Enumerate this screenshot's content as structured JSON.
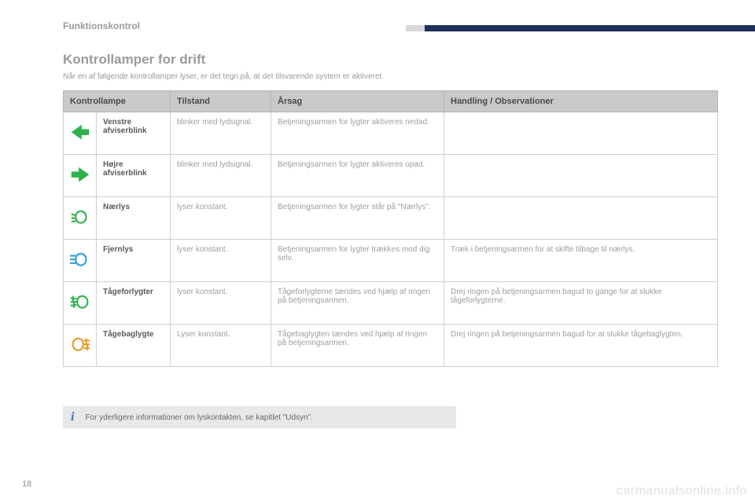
{
  "breadcrumb": "Funktionskontrol",
  "heading": "Kontrollamper for drift",
  "subheading": "Når en af følgende kontrollamper lyser, er det tegn på, at det tilsvarende system er aktiveret.",
  "columns": {
    "lamp": "Kontrollampe",
    "state": "Tilstand",
    "cause": "Årsag",
    "action": "Handling / Observationer"
  },
  "rows": [
    {
      "icon": "left-arrow",
      "icon_color": "#2fb24c",
      "name": "Venstre afviserblink",
      "state": "blinker med lydsignal.",
      "cause": "Betjeningsarmen for lygter aktiveres nedad.",
      "action": ""
    },
    {
      "icon": "right-arrow",
      "icon_color": "#2fb24c",
      "name": "Højre afviserblink",
      "state": "blinker med lydsignal.",
      "cause": "Betjeningsarmen for lygter aktiveres opad.",
      "action": ""
    },
    {
      "icon": "low-beam",
      "icon_color": "#2fb24c",
      "name": "Nærlys",
      "state": "lyser konstant.",
      "cause": "Betjeningsarmen for lygter står på \"Nærlys\".",
      "action": ""
    },
    {
      "icon": "high-beam",
      "icon_color": "#2aa0d8",
      "name": "Fjernlys",
      "state": "lyser konstant.",
      "cause": "Betjeningsarmen for lygter trækkes mod dig selv.",
      "action": "Træk i betjeningsarmen for at skifte tilbage til nærlys."
    },
    {
      "icon": "front-fog",
      "icon_color": "#2fb24c",
      "name": "Tågeforlygter",
      "state": "lyser konstant.",
      "cause": "Tågeforlygterne tændes ved hjælp af ringen på betjeningsarmen.",
      "action": "Drej ringen på betjeningsarmen bagud to gange for at slukke tågeforlygterne."
    },
    {
      "icon": "rear-fog",
      "icon_color": "#e79a2a",
      "name": "Tågebaglygte",
      "state": "Lyser konstant.",
      "cause": "Tågebaglygten tændes ved hjælp af ringen på betjeningsarmen.",
      "action": "Drej ringen på betjeningsarmen bagud for at slukke tågebaglygten."
    }
  ],
  "info_text": "For yderligere informationer om lyskontakten, se kapitlet \"Udsyn\".",
  "page_number": "18",
  "watermark": "carmanualsonline.info",
  "colors": {
    "header_bg": "#c9c9c9",
    "bar_dark": "#1e2f5a",
    "info_bg": "#e8e8e8"
  }
}
